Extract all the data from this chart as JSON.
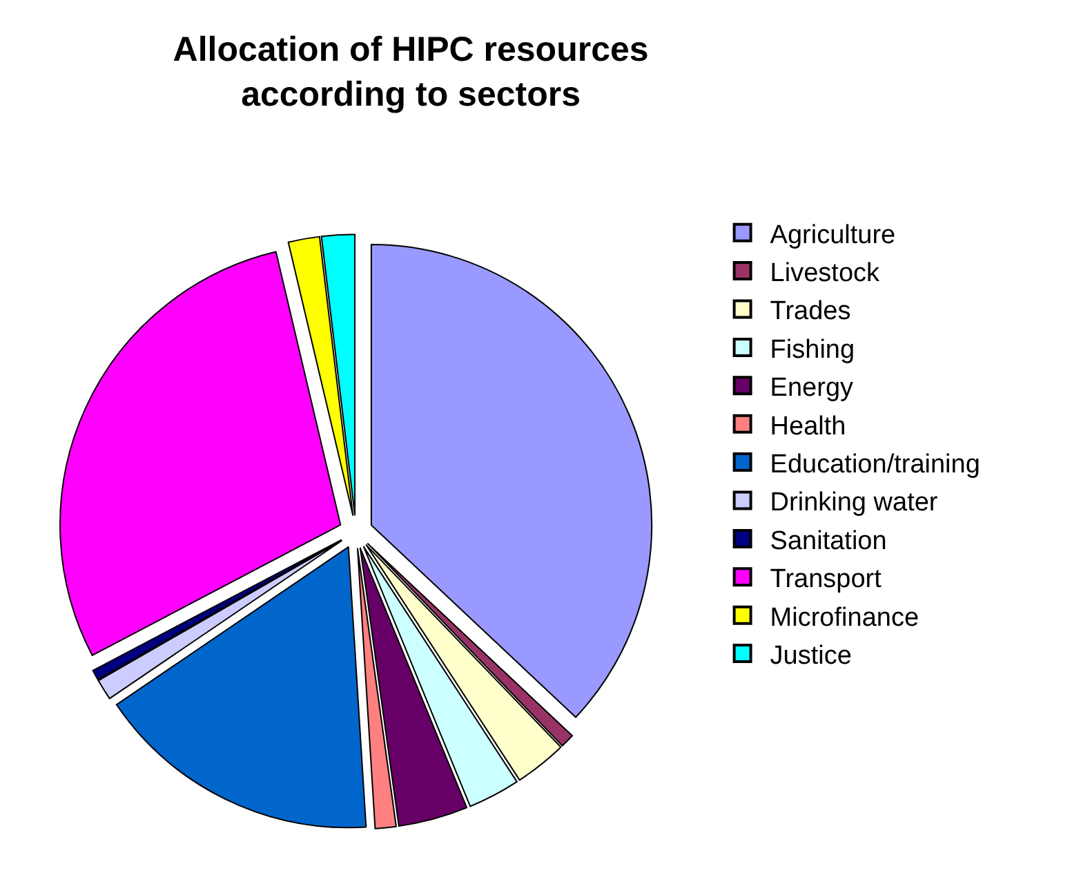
{
  "chart_data": {
    "type": "pie",
    "title": "Allocation of HIPC resources\naccording to sectors",
    "categories": [
      "Agriculture",
      "Livestock",
      "Trades",
      "Fishing",
      "Energy",
      "Health",
      "Education/training",
      "Drinking water",
      "Sanitation",
      "Transport",
      "Microfinance",
      "Justice"
    ],
    "values": [
      37,
      0.8,
      3,
      3,
      4,
      1.2,
      16.5,
      1.2,
      0.6,
      29,
      1.8,
      1.9
    ],
    "colors": [
      "#9999ff",
      "#993366",
      "#ffffcc",
      "#ccffff",
      "#660066",
      "#ff8080",
      "#0066cc",
      "#ccccff",
      "#000080",
      "#ff00ff",
      "#ffff00",
      "#00ffff"
    ],
    "legend": "right"
  }
}
